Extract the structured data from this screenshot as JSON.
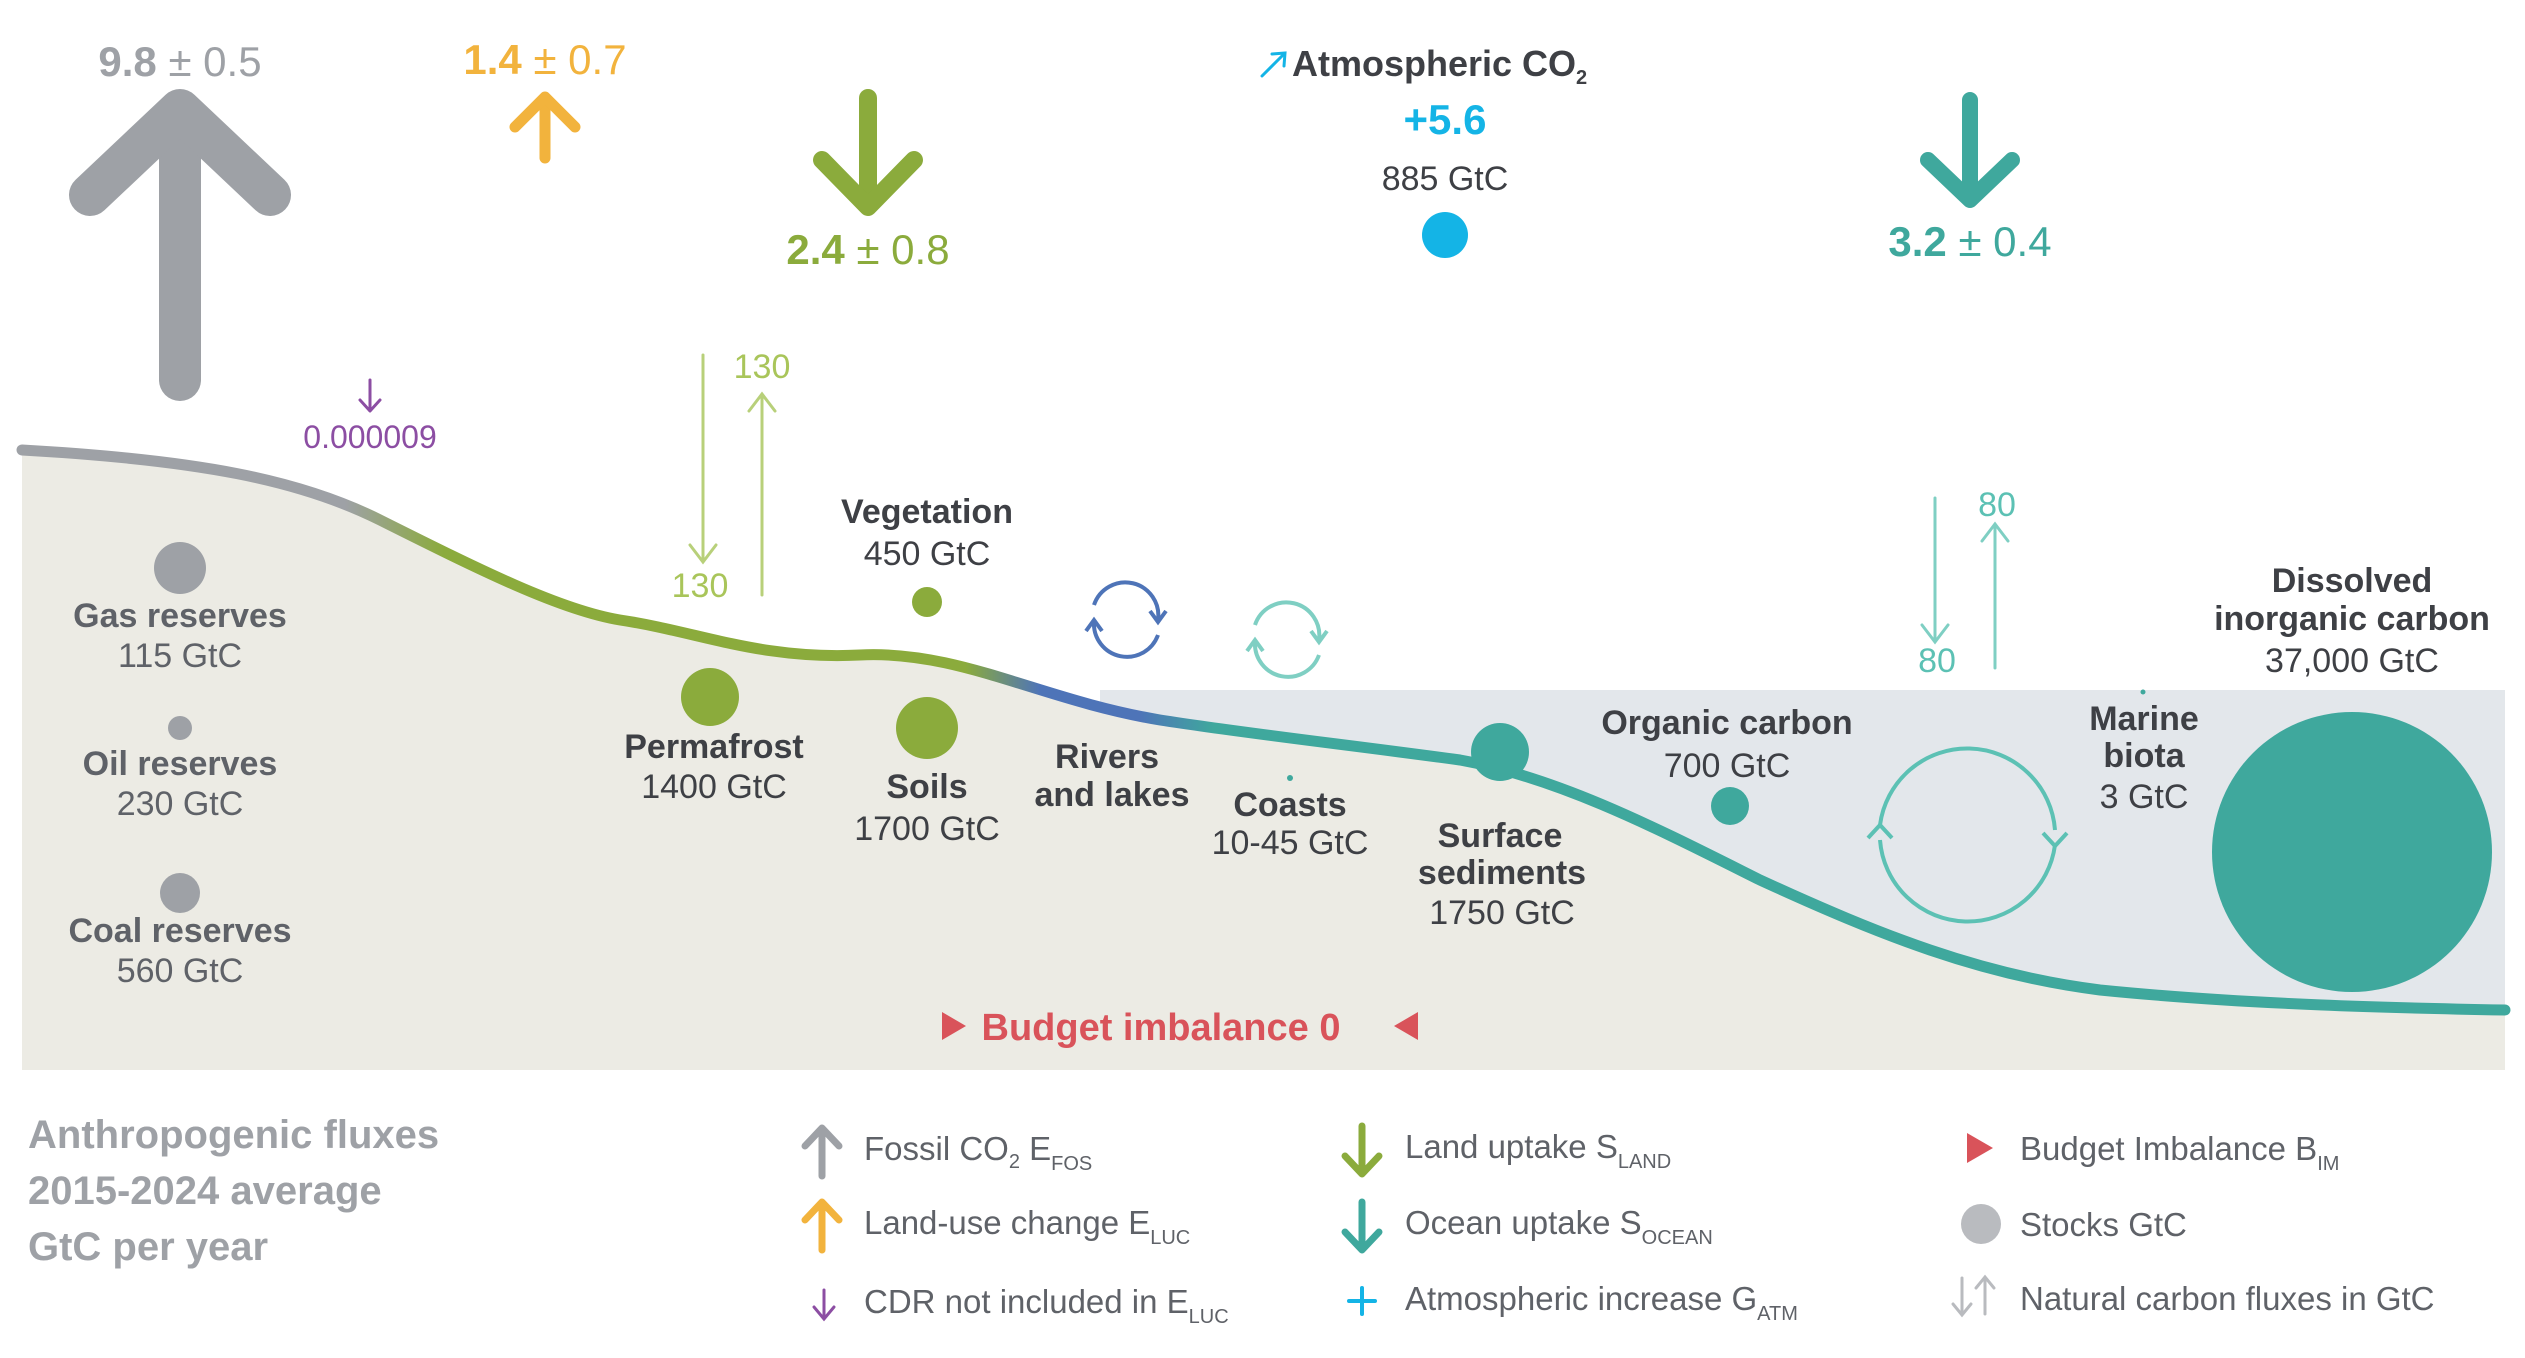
{
  "colors": {
    "fossil": "#9ea1a6",
    "luc": "#f2b33d",
    "land": "#8bab3c",
    "ocean": "#3fa89d",
    "atm": "#14b4e6",
    "cdr": "#8c4ea3",
    "imbalance": "#d9535a",
    "river": "#4e74b8",
    "natural_land": "#b8d07a",
    "natural_ocean": "#7fcfc3",
    "ground": "#ecebe4",
    "water": "#e3e7eb",
    "stock": "#9ea1a6"
  },
  "fluxes": {
    "fossil": {
      "value": "9.8",
      "unc": " ± 0.5"
    },
    "luc": {
      "value": "1.4",
      "unc": " ± 0.7"
    },
    "land": {
      "value": "2.4",
      "unc": " ± 0.8"
    },
    "ocean": {
      "value": "3.2",
      "unc": " ± 0.4"
    },
    "cdr": {
      "value": "0.000009"
    },
    "atmosphere": {
      "label": "Atmospheric CO",
      "sub": "2",
      "increase": "+5.6",
      "stock": "885 GtC"
    }
  },
  "natural_fluxes": {
    "land_down": "130",
    "land_up": "130",
    "ocean_down": "80",
    "ocean_up": "80"
  },
  "stocks": [
    {
      "name": "Gas reserves",
      "value": "115 GtC"
    },
    {
      "name": "Oil reserves",
      "value": "230 GtC"
    },
    {
      "name": "Coal reserves",
      "value": "560 GtC"
    },
    {
      "name": "Permafrost",
      "value": "1400 GtC"
    },
    {
      "name": "Vegetation",
      "value": "450 GtC"
    },
    {
      "name": "Soils",
      "value": "1700 GtC"
    },
    {
      "name_lines": [
        "Rivers",
        "and lakes"
      ]
    },
    {
      "name": "Coasts",
      "value": "10-45 GtC"
    },
    {
      "name_lines": [
        "Surface",
        "sediments"
      ],
      "value": "1750 GtC"
    },
    {
      "name": "Organic carbon",
      "value": "700 GtC"
    },
    {
      "name_lines": [
        "Marine",
        "biota"
      ],
      "value": "3 GtC"
    },
    {
      "name_lines": [
        "Dissolved",
        "inorganic carbon"
      ],
      "value": "37,000 GtC"
    }
  ],
  "budget_imbalance": "Budget imbalance 0",
  "caption": {
    "lines": [
      "Anthropogenic fluxes",
      "2015-2024 average",
      "GtC per year"
    ]
  },
  "legend": [
    {
      "label": "Fossil CO",
      "sub1": "2",
      "mid": " E",
      "sub2": "FOS",
      "icon": "grey-up-arrow-icon"
    },
    {
      "label": "Land-use change E",
      "sub2": "LUC",
      "icon": "orange-up-arrow-icon"
    },
    {
      "label": "CDR not included in E",
      "sub2": "LUC",
      "icon": "purple-down-arrow-icon"
    },
    {
      "label": "Land uptake S",
      "sub2": "LAND",
      "icon": "green-down-arrow-icon"
    },
    {
      "label": "Ocean uptake S",
      "sub2": "OCEAN",
      "icon": "teal-down-arrow-icon"
    },
    {
      "label": "Atmospheric increase G",
      "sub2": "ATM",
      "icon": "plus-icon"
    },
    {
      "label": "Budget Imbalance B",
      "sub2": "IM",
      "icon": "red-triangle-icon"
    },
    {
      "label": "Stocks GtC",
      "icon": "grey-circle-icon"
    },
    {
      "label": "Natural carbon fluxes in GtC",
      "icon": "natural-flux-arrows-icon"
    }
  ]
}
